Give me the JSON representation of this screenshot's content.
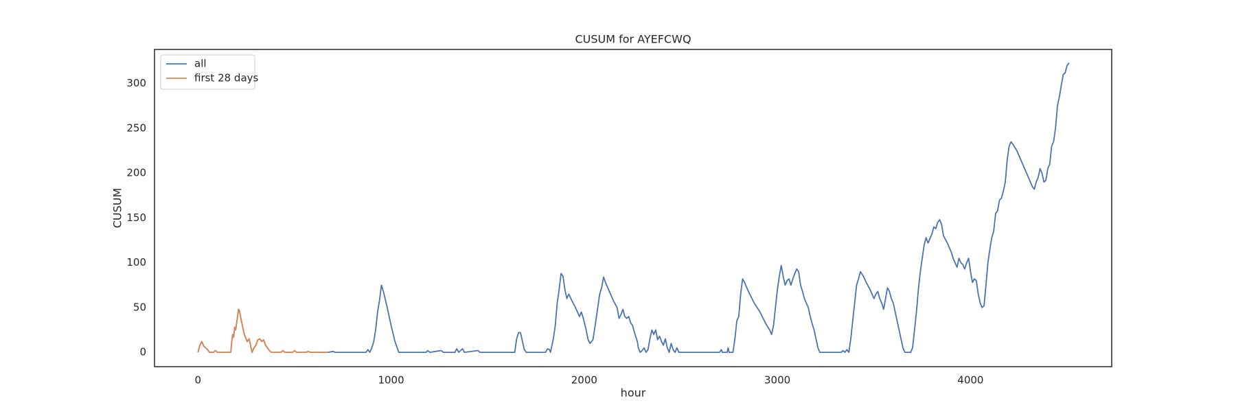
{
  "chart_data": {
    "type": "line",
    "title": "CUSUM for AYEFCWQ",
    "x_label": "hour",
    "y_label": "CUSUM",
    "xlim": [
      -225,
      4731
    ],
    "ylim": [
      -16,
      338
    ],
    "xticks": [
      0,
      1000,
      2000,
      3000,
      4000
    ],
    "yticks": [
      0,
      50,
      100,
      150,
      200,
      250,
      300
    ],
    "grid": false,
    "legend": "upper left",
    "series": [
      {
        "name": "all",
        "color": "#4c72b0",
        "x": [
          0,
          10,
          20,
          30,
          40,
          50,
          60,
          80,
          90,
          100,
          170,
          175,
          180,
          185,
          190,
          195,
          205,
          210,
          215,
          225,
          240,
          255,
          265,
          280,
          290,
          300,
          310,
          320,
          330,
          340,
          350,
          360,
          370,
          380,
          430,
          440,
          450,
          490,
          500,
          510,
          560,
          570,
          580,
          672,
          700,
          710,
          870,
          880,
          890,
          900,
          910,
          920,
          930,
          940,
          950,
          960,
          980,
          1000,
          1020,
          1040,
          1180,
          1190,
          1200,
          1260,
          1270,
          1330,
          1340,
          1350,
          1370,
          1380,
          1450,
          1460,
          1640,
          1650,
          1660,
          1670,
          1680,
          1690,
          1700,
          1800,
          1810,
          1820,
          1825,
          1840,
          1850,
          1860,
          1870,
          1880,
          1890,
          1900,
          1910,
          1920,
          1935,
          1950,
          1965,
          1975,
          1985,
          1995,
          2010,
          2020,
          2030,
          2045,
          2060,
          2070,
          2080,
          2090,
          2100,
          2110,
          2130,
          2150,
          2170,
          2180,
          2190,
          2200,
          2210,
          2220,
          2230,
          2240,
          2250,
          2260,
          2275,
          2280,
          2290,
          2300,
          2310,
          2320,
          2330,
          2340,
          2350,
          2360,
          2370,
          2380,
          2390,
          2400,
          2410,
          2420,
          2430,
          2440,
          2450,
          2460,
          2470,
          2480,
          2490,
          2700,
          2710,
          2715,
          2740,
          2745,
          2750,
          2770,
          2780,
          2790,
          2800,
          2810,
          2820,
          2830,
          2850,
          2880,
          2910,
          2940,
          2960,
          2970,
          2980,
          2990,
          3000,
          3010,
          3020,
          3030,
          3040,
          3050,
          3060,
          3070,
          3080,
          3090,
          3100,
          3110,
          3120,
          3130,
          3140,
          3150,
          3160,
          3170,
          3180,
          3190,
          3200,
          3210,
          3220,
          3330,
          3340,
          3350,
          3360,
          3370,
          3380,
          3390,
          3400,
          3410,
          3420,
          3430,
          3445,
          3460,
          3480,
          3500,
          3510,
          3520,
          3530,
          3540,
          3550,
          3560,
          3570,
          3580,
          3590,
          3600,
          3610,
          3620,
          3630,
          3640,
          3650,
          3660,
          3690,
          3700,
          3710,
          3720,
          3730,
          3740,
          3750,
          3760,
          3770,
          3780,
          3800,
          3810,
          3820,
          3830,
          3840,
          3850,
          3860,
          3880,
          3900,
          3910,
          3920,
          3930,
          3940,
          3950,
          3960,
          3970,
          3980,
          3990,
          4000,
          4010,
          4020,
          4030,
          4040,
          4050,
          4060,
          4070,
          4080,
          4090,
          4100,
          4110,
          4120,
          4130,
          4140,
          4150,
          4160,
          4170,
          4180,
          4190,
          4200,
          4210,
          4220,
          4240,
          4260,
          4280,
          4300,
          4320,
          4330,
          4340,
          4350,
          4360,
          4370,
          4380,
          4390,
          4400,
          4410,
          4420,
          4430,
          4440,
          4450,
          4460,
          4470,
          4480,
          4490,
          4500,
          4510
        ],
        "values": [
          0,
          8,
          12,
          7,
          5,
          3,
          0,
          0,
          2,
          0,
          0,
          12,
          20,
          17,
          28,
          25,
          40,
          48,
          46,
          35,
          20,
          12,
          15,
          0,
          5,
          8,
          14,
          15,
          12,
          14,
          8,
          5,
          2,
          0,
          0,
          2,
          0,
          0,
          2,
          0,
          0,
          1,
          0,
          0,
          1,
          0,
          0,
          3,
          0,
          5,
          12,
          25,
          45,
          58,
          75,
          68,
          50,
          30,
          12,
          0,
          0,
          2,
          0,
          2,
          0,
          0,
          4,
          0,
          4,
          0,
          2,
          0,
          0,
          15,
          22,
          22,
          12,
          3,
          0,
          0,
          4,
          3,
          0,
          15,
          30,
          55,
          70,
          88,
          85,
          70,
          60,
          65,
          58,
          52,
          45,
          40,
          45,
          38,
          25,
          14,
          10,
          14,
          35,
          50,
          65,
          72,
          84,
          78,
          68,
          58,
          50,
          38,
          42,
          48,
          40,
          38,
          40,
          33,
          30,
          22,
          12,
          5,
          0,
          2,
          5,
          0,
          3,
          15,
          25,
          20,
          25,
          14,
          18,
          12,
          8,
          15,
          5,
          0,
          10,
          3,
          0,
          5,
          0,
          0,
          3,
          0,
          0,
          5,
          0,
          0,
          15,
          35,
          40,
          65,
          82,
          78,
          68,
          55,
          45,
          32,
          25,
          20,
          30,
          50,
          70,
          85,
          97,
          85,
          75,
          80,
          82,
          75,
          82,
          88,
          93,
          90,
          75,
          68,
          60,
          55,
          50,
          40,
          32,
          25,
          15,
          5,
          0,
          0,
          2,
          0,
          3,
          0,
          15,
          35,
          55,
          75,
          82,
          90,
          85,
          78,
          70,
          60,
          65,
          68,
          60,
          55,
          48,
          60,
          72,
          68,
          60,
          55,
          45,
          35,
          25,
          15,
          5,
          0,
          0,
          5,
          25,
          45,
          70,
          90,
          105,
          120,
          128,
          122,
          132,
          140,
          138,
          145,
          148,
          143,
          130,
          122,
          112,
          105,
          100,
          95,
          105,
          100,
          98,
          93,
          100,
          105,
          90,
          78,
          82,
          80,
          65,
          55,
          50,
          52,
          75,
          100,
          115,
          128,
          135,
          155,
          158,
          170,
          172,
          180,
          190,
          215,
          230,
          235,
          232,
          225,
          215,
          205,
          195,
          185,
          182,
          190,
          195,
          205,
          200,
          190,
          192,
          205,
          210,
          230,
          235,
          250,
          275,
          285,
          298,
          310,
          312,
          320,
          323
        ]
      },
      {
        "name": "first 28 days",
        "color": "#dd8452",
        "x": [
          0,
          10,
          20,
          30,
          40,
          50,
          60,
          80,
          90,
          100,
          170,
          175,
          180,
          185,
          190,
          195,
          205,
          210,
          215,
          225,
          240,
          255,
          265,
          280,
          290,
          300,
          310,
          320,
          330,
          340,
          350,
          360,
          370,
          380,
          430,
          440,
          450,
          490,
          500,
          510,
          560,
          570,
          580,
          672
        ],
        "values": [
          0,
          8,
          12,
          7,
          5,
          3,
          0,
          0,
          2,
          0,
          0,
          12,
          20,
          17,
          28,
          25,
          40,
          48,
          46,
          35,
          20,
          12,
          15,
          0,
          5,
          8,
          14,
          15,
          12,
          14,
          8,
          5,
          2,
          0,
          0,
          2,
          0,
          0,
          2,
          0,
          0,
          1,
          0,
          0
        ]
      }
    ]
  }
}
